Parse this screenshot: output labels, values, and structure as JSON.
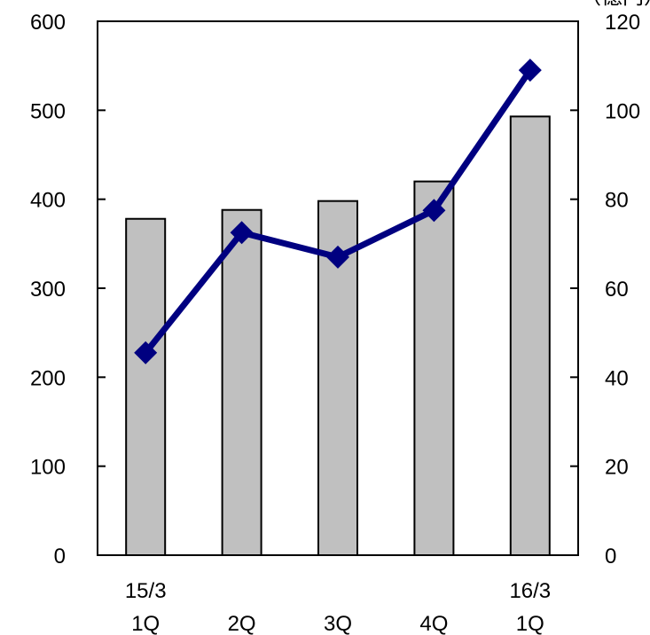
{
  "chart_data": {
    "type": "bar+line",
    "categories": [
      {
        "line1": "15/3",
        "line2": "1Q"
      },
      {
        "line1": "",
        "line2": "2Q"
      },
      {
        "line1": "",
        "line2": "3Q"
      },
      {
        "line1": "",
        "line2": "4Q"
      },
      {
        "line1": "16/3",
        "line2": "1Q"
      }
    ],
    "bar_series": {
      "axis": "left",
      "values": [
        378,
        388,
        398,
        420,
        493
      ],
      "color": "#c0c0c0"
    },
    "line_series": {
      "axis": "right",
      "values": [
        45.5,
        72.5,
        67,
        77.5,
        109
      ],
      "color": "#000080",
      "marker": "diamond"
    },
    "y_left": {
      "min": 0,
      "max": 600,
      "ticks": [
        "0",
        "100",
        "200",
        "300",
        "400",
        "500",
        "600"
      ]
    },
    "y_right": {
      "min": 0,
      "max": 120,
      "ticks": [
        "0",
        "20",
        "40",
        "60",
        "80",
        "100",
        "120"
      ],
      "unit_label": "（億円）"
    },
    "grid": false
  }
}
